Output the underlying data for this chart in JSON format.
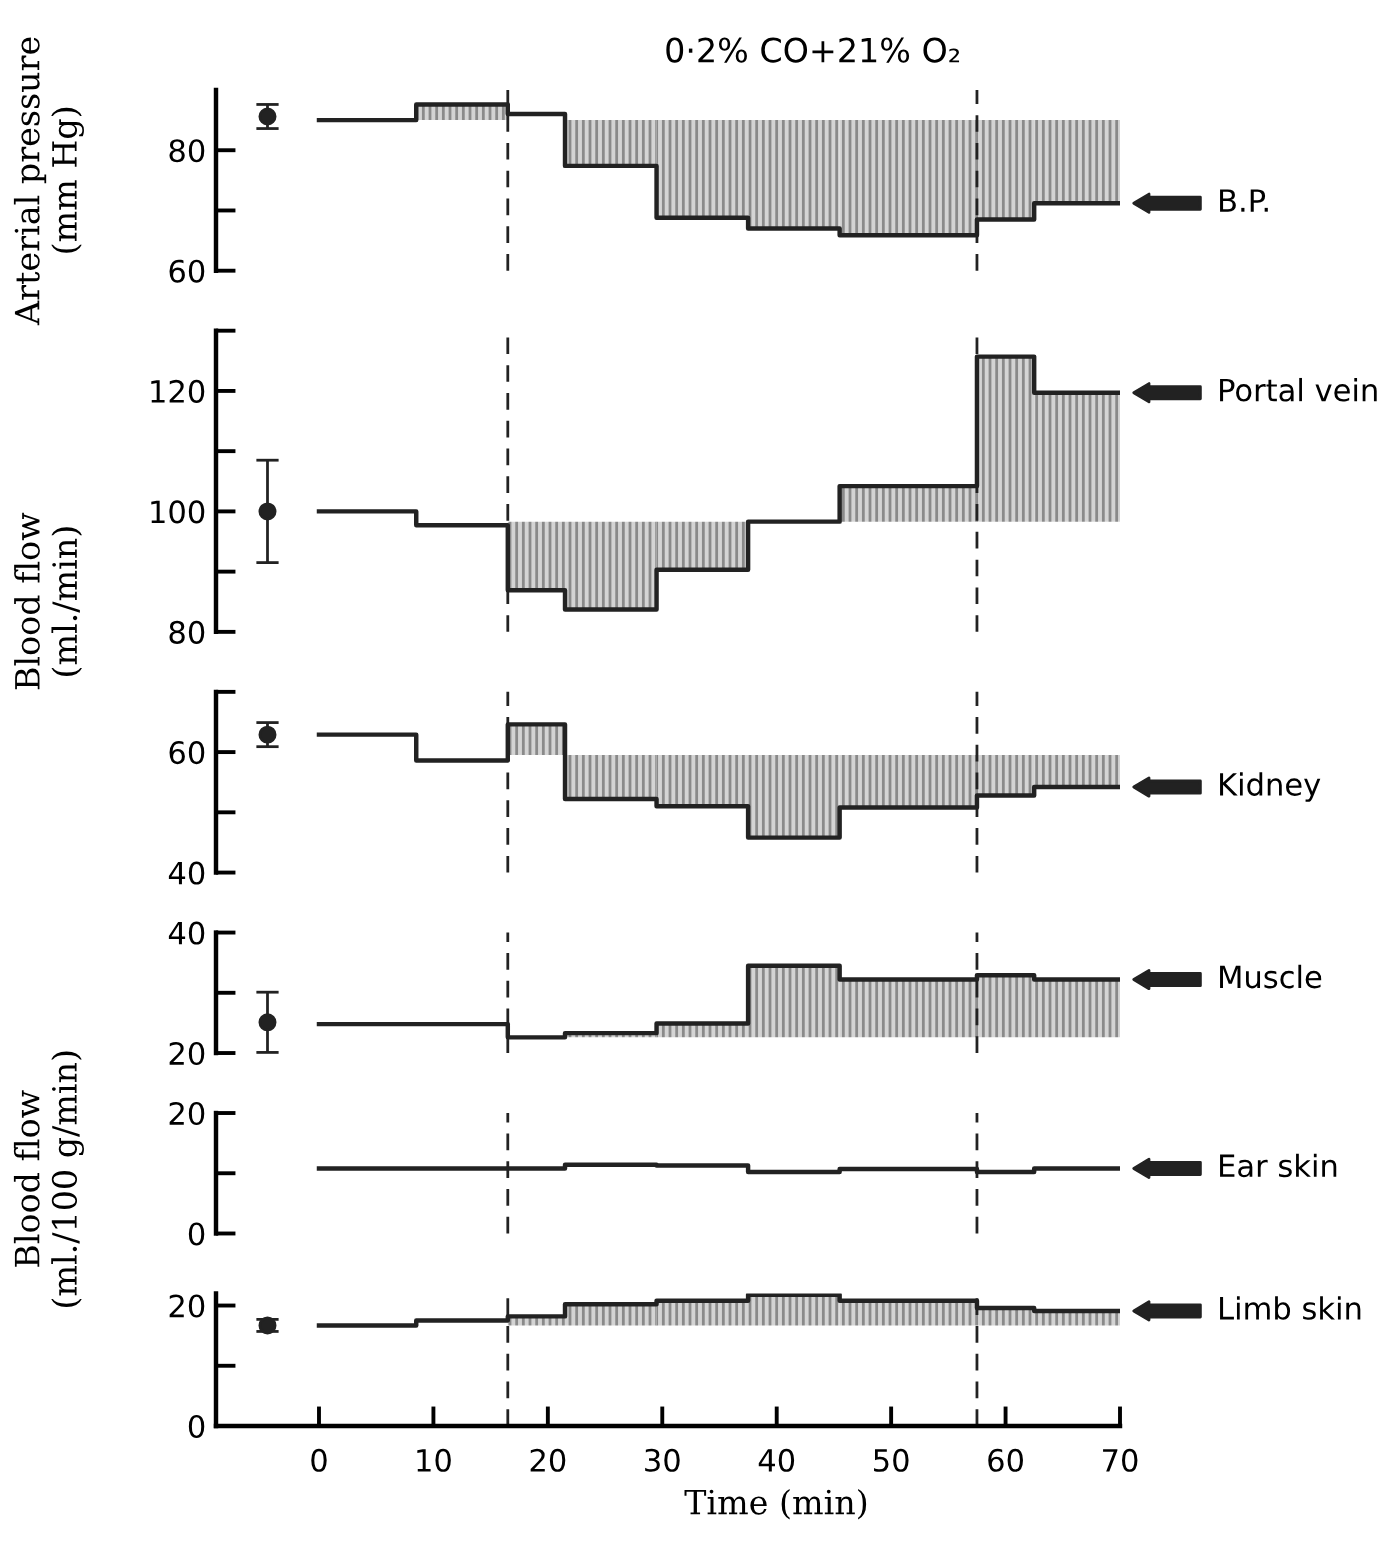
{
  "chart_data": [
    {
      "type": "step",
      "title": "0·2% CO+21% O₂",
      "ylabel": "Arterial pressure\n(mm Hg)",
      "xlim": [
        -9,
        70
      ],
      "ylim": [
        60,
        90
      ],
      "yticks": [
        60,
        {
          "value": 70,
          "label": null
        },
        80
      ],
      "tick_labels": "y",
      "ref_lines": [
        {
          "axis": "x",
          "value": 16.5,
          "line_style": "dashed"
        },
        {
          "axis": "x",
          "value": 57.5,
          "line_style": "dashed"
        }
      ],
      "series": [
        {
          "name": "B.P.",
          "color": "#222222",
          "x": [
            0,
            8.5,
            16.5,
            21.5,
            29.5,
            37.5,
            45.5,
            57.5,
            62.5,
            70
          ],
          "values": [
            85,
            87.6,
            86,
            77.4,
            68.8,
            67,
            65.9,
            68.5,
            71.2,
            71.2
          ],
          "lower": [
            null,
            85,
            null,
            77.4,
            68.8,
            67,
            65.9,
            68.5,
            71.2,
            71.2
          ],
          "upper": [
            null,
            87.6,
            null,
            85,
            85,
            85,
            85,
            85,
            85,
            85
          ]
        },
        {
          "type": "scatter",
          "color": "#222222",
          "marker": "circle",
          "x": [
            -4.5
          ],
          "values": [
            85.6
          ],
          "errors": [
            2
          ]
        }
      ]
    },
    {
      "type": "step",
      "ylabel": "Blood flow\n(ml./min)",
      "xlim": [
        -9,
        70
      ],
      "ylim": [
        80,
        130
      ],
      "yticks": [
        80,
        {
          "value": 90,
          "label": null
        },
        100,
        {
          "value": 110,
          "label": null
        },
        120,
        {
          "value": 130,
          "label": null
        }
      ],
      "tick_labels": "y",
      "ref_lines": [
        {
          "axis": "x",
          "value": 16.5,
          "line_style": "dashed"
        },
        {
          "axis": "x",
          "value": 57.5,
          "line_style": "dashed"
        }
      ],
      "series": [
        {
          "name": "Portal vein",
          "color": "#222222",
          "x": [
            0,
            8.5,
            16.5,
            21.5,
            29.5,
            37.5,
            45.5,
            57.5,
            62.5,
            70
          ],
          "values": [
            100,
            97.7,
            86.9,
            83.7,
            90.3,
            98.3,
            104.2,
            125.7,
            119.7,
            119.7
          ],
          "lower": [
            null,
            null,
            86.9,
            83.7,
            90.3,
            98.3,
            98.3,
            98.3,
            98.3,
            98.3
          ],
          "upper": [
            null,
            null,
            98.3,
            98.3,
            98.3,
            98.3,
            104.2,
            125.7,
            119.7,
            119.7
          ]
        },
        {
          "type": "scatter",
          "color": "#222222",
          "marker": "circle",
          "x": [
            -4.5
          ],
          "values": [
            100
          ],
          "errors": [
            8.5
          ]
        }
      ]
    },
    {
      "type": "step",
      "xlim": [
        -9,
        70
      ],
      "ylim": [
        40,
        70
      ],
      "yticks": [
        40,
        {
          "value": 50,
          "label": null
        },
        60,
        {
          "value": 70,
          "label": null
        }
      ],
      "tick_labels": "y",
      "ref_lines": [
        {
          "axis": "x",
          "value": 16.5,
          "line_style": "dashed"
        },
        {
          "axis": "x",
          "value": 57.5,
          "line_style": "dashed"
        }
      ],
      "series": [
        {
          "name": "Kidney",
          "color": "#222222",
          "x": [
            0,
            8.5,
            16.5,
            21.5,
            29.5,
            37.5,
            45.5,
            57.5,
            62.5,
            70
          ],
          "values": [
            62.9,
            58.6,
            64.6,
            52.2,
            51,
            45.8,
            50.8,
            52.8,
            54.2,
            54.2
          ],
          "lower": [
            null,
            null,
            59.5,
            52.2,
            51,
            45.8,
            50.8,
            52.8,
            54.2,
            54.2
          ],
          "upper": [
            null,
            null,
            64.6,
            59.5,
            59.5,
            59.5,
            59.5,
            59.5,
            59.5,
            59.5
          ]
        },
        {
          "type": "scatter",
          "color": "#222222",
          "marker": "circle",
          "x": [
            -4.5
          ],
          "values": [
            62.9
          ],
          "errors": [
            2
          ]
        }
      ]
    },
    {
      "type": "step",
      "ylabel": "Blood flow\n(ml./100 g/min)",
      "xlim": [
        -9,
        70
      ],
      "ylim": [
        20,
        40
      ],
      "yticks": [
        20,
        {
          "value": 30,
          "label": null
        },
        40
      ],
      "tick_labels": "y",
      "ref_lines": [
        {
          "axis": "x",
          "value": 16.5,
          "line_style": "dashed"
        },
        {
          "axis": "x",
          "value": 57.5,
          "line_style": "dashed"
        }
      ],
      "series": [
        {
          "name": "Muscle",
          "color": "#222222",
          "x": [
            0,
            16.5,
            21.5,
            29.5,
            37.5,
            45.5,
            57.5,
            62.5,
            70
          ],
          "values": [
            24.8,
            22.6,
            23.3,
            24.9,
            34.5,
            32.2,
            32.9,
            32.2,
            32.2
          ],
          "lower": [
            null,
            null,
            22.6,
            22.6,
            22.6,
            22.6,
            22.6,
            22.6,
            22.6
          ],
          "upper": [
            null,
            null,
            23.3,
            24.9,
            34.5,
            32.2,
            32.9,
            32.2,
            32.2
          ]
        },
        {
          "type": "scatter",
          "color": "#222222",
          "marker": "circle",
          "x": [
            -4.5
          ],
          "values": [
            25.1
          ],
          "errors": [
            5
          ]
        }
      ]
    },
    {
      "type": "step",
      "xlim": [
        -9,
        70
      ],
      "ylim": [
        0,
        20
      ],
      "yticks": [
        0,
        {
          "value": 10,
          "label": null
        },
        20
      ],
      "tick_labels": "y",
      "ref_lines": [
        {
          "axis": "x",
          "value": 16.5,
          "line_style": "dashed"
        },
        {
          "axis": "x",
          "value": 57.5,
          "line_style": "dashed"
        }
      ],
      "series": [
        {
          "name": "Ear skin",
          "color": "#222222",
          "x": [
            0,
            21.5,
            29.5,
            37.5,
            45.5,
            57.5,
            62.5,
            70
          ],
          "values": [
            10.8,
            11.4,
            11.3,
            10.2,
            10.7,
            10.2,
            10.8,
            10.8
          ]
        }
      ]
    },
    {
      "type": "step",
      "xlabel": "Time (min)",
      "xlim": [
        -9,
        70
      ],
      "xticks": [
        0,
        10,
        20,
        30,
        40,
        50,
        60,
        70
      ],
      "ylim": [
        0,
        22
      ],
      "yticks": [
        0,
        {
          "value": 10,
          "label": null
        },
        20
      ],
      "ref_lines": [
        {
          "axis": "x",
          "value": 16.5,
          "line_style": "dashed"
        },
        {
          "axis": "x",
          "value": 57.5,
          "line_style": "dashed"
        }
      ],
      "series": [
        {
          "name": "Limb skin",
          "color": "#222222",
          "x": [
            0,
            8.5,
            16.5,
            21.5,
            29.5,
            37.5,
            45.5,
            57.5,
            62.5,
            70
          ],
          "values": [
            16.7,
            17.5,
            18.2,
            20.2,
            20.8,
            21.8,
            20.8,
            19.6,
            19.1,
            19.1
          ],
          "lower": [
            null,
            null,
            16.7,
            16.7,
            16.7,
            16.7,
            16.7,
            16.7,
            16.7,
            16.7
          ],
          "upper": [
            null,
            null,
            18.2,
            20.2,
            20.8,
            21.8,
            20.8,
            19.6,
            19.1,
            19.1
          ]
        },
        {
          "type": "scatter",
          "color": "#222222",
          "marker": "circle",
          "x": [
            -4.5
          ],
          "values": [
            16.7
          ],
          "errors": [
            1
          ]
        }
      ]
    }
  ]
}
